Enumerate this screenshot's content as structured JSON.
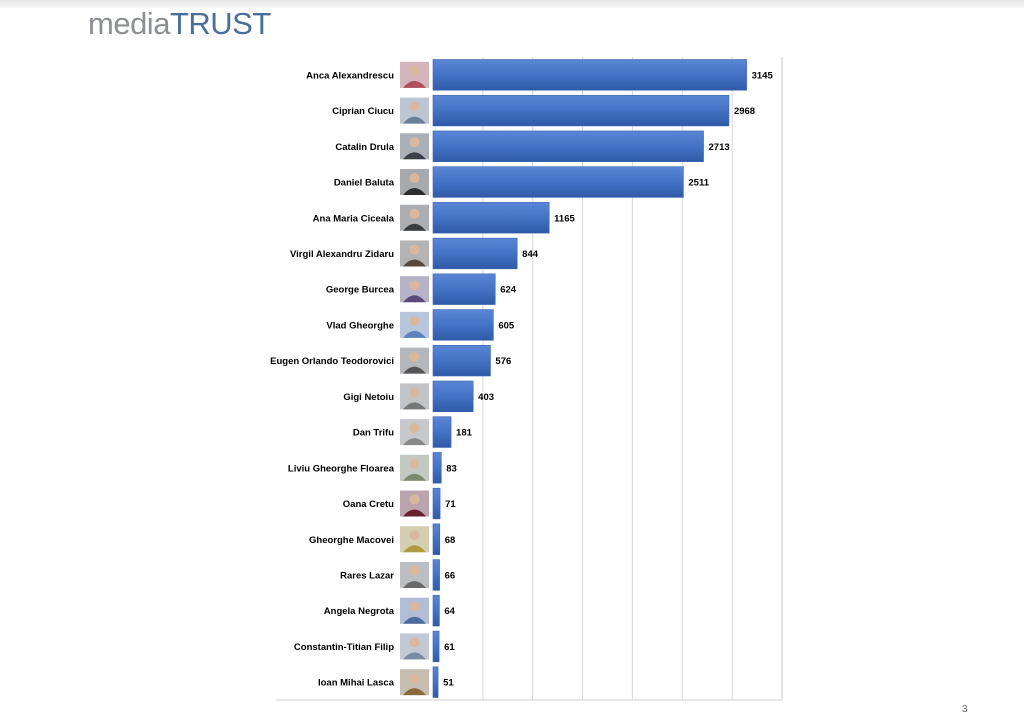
{
  "logo": {
    "part1": "media",
    "part2": "TRUST"
  },
  "page_number": "3",
  "chart_data": {
    "type": "bar",
    "orientation": "horizontal",
    "title": "",
    "xlabel": "",
    "ylabel": "",
    "xlim": [
      0,
      3500
    ],
    "grid": true,
    "bar_color": "#4472c4",
    "categories": [
      "Anca Alexandrescu",
      "Ciprian Ciucu",
      "Catalin Drula",
      "Daniel Baluta",
      "Ana Maria Ciceala",
      "Virgil Alexandru Zidaru",
      "George Burcea",
      "Vlad Gheorghe",
      "Eugen Orlando Teodorovici",
      "Gigi Netoiu",
      "Dan Trifu",
      "Liviu Gheorghe Floarea",
      "Oana Cretu",
      "Gheorghe Macovei",
      "Rares Lazar",
      "Angela Negrota",
      "Constantin-Titian Filip",
      "Ioan Mihai Lasca"
    ],
    "values": [
      3145,
      2968,
      2713,
      2511,
      1165,
      844,
      624,
      605,
      576,
      403,
      181,
      83,
      71,
      68,
      66,
      64,
      61,
      51
    ],
    "data_labels": [
      "3145",
      "2968",
      "2713",
      "2511",
      "1165",
      "844",
      "624",
      "605",
      "576",
      "403",
      "181",
      "83",
      "71",
      "68",
      "66",
      "64",
      "61",
      "51"
    ],
    "photo_colors": [
      "#b0505a",
      "#6b7f99",
      "#3a3f4a",
      "#2e2e2e",
      "#3b3b3b",
      "#554a40",
      "#5a4a7a",
      "#5d82b8",
      "#555555",
      "#777777",
      "#888888",
      "#7a8a6a",
      "#6a2030",
      "#b09a40",
      "#6a6a6a",
      "#4a6aa0",
      "#7a8aa0",
      "#8a6a3a"
    ]
  }
}
